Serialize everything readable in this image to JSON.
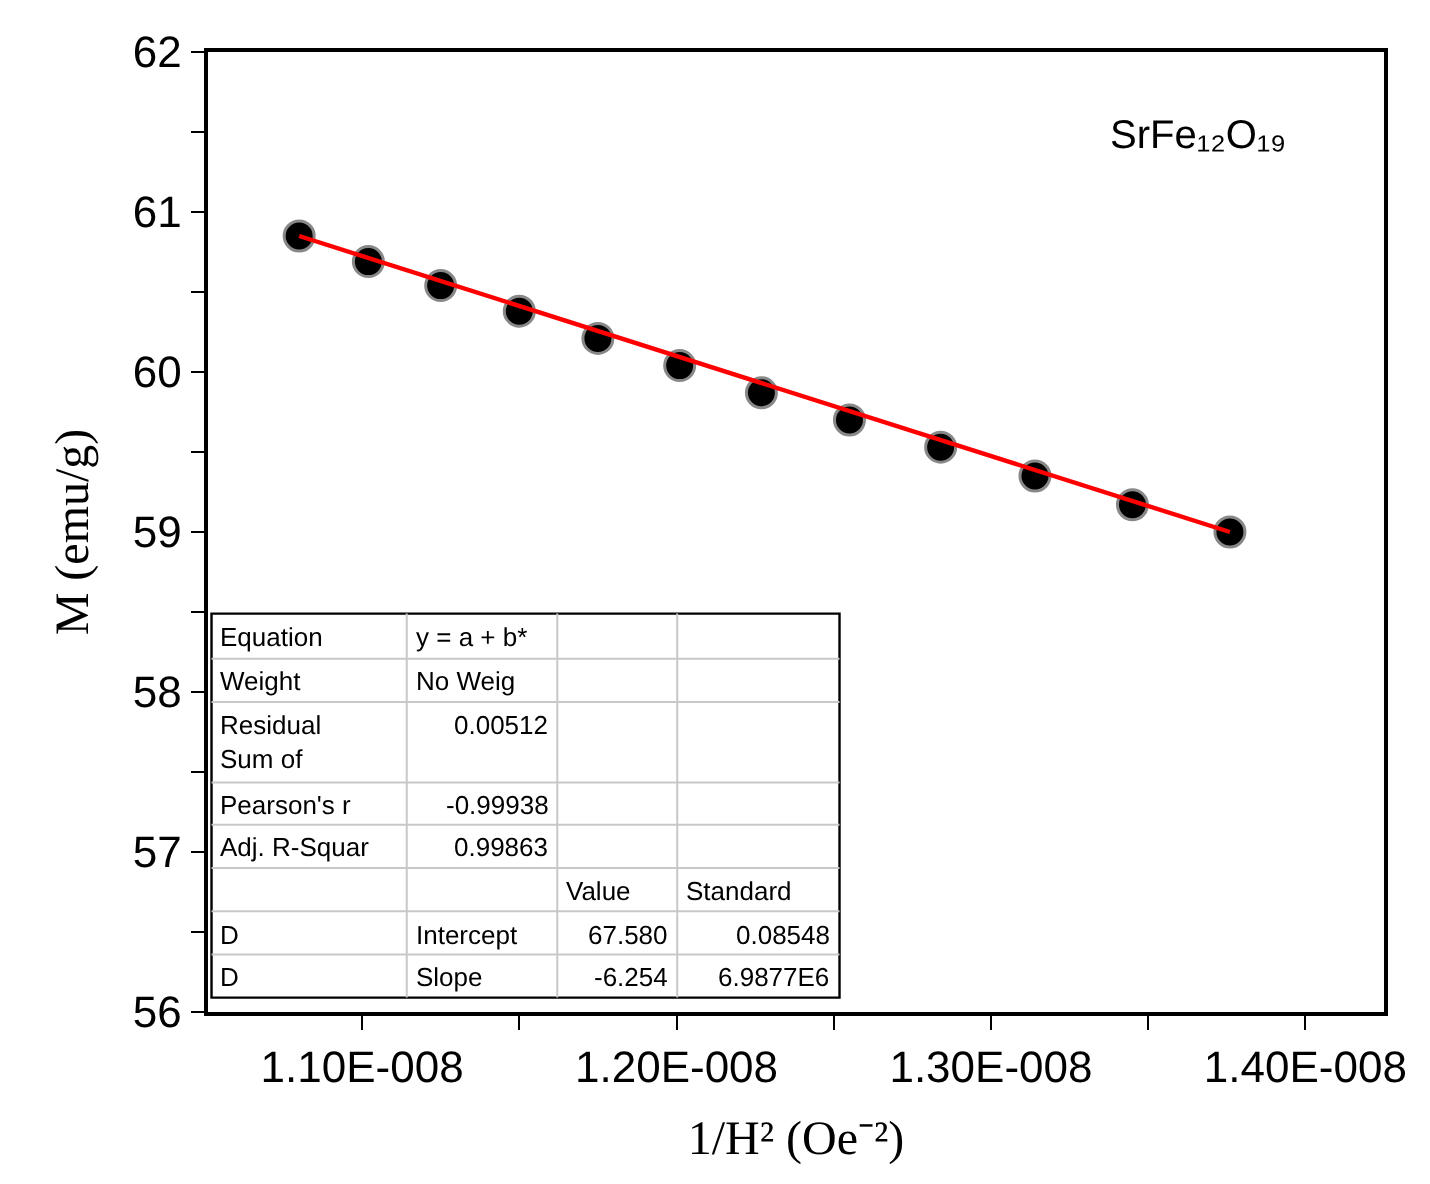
{
  "chart_data": {
    "type": "scatter",
    "xlabel": "1/H² (Oe⁻²)",
    "ylabel": "M (emu/g)",
    "xlim": [
      1.051e-08,
      1.425e-08
    ],
    "xticks": [
      {
        "value": 1.1e-08,
        "label": "1.10E-008"
      },
      {
        "value": 1.15e-08,
        "label": null
      },
      {
        "value": 1.2e-08,
        "label": "1.20E-008"
      },
      {
        "value": 1.25e-08,
        "label": null
      },
      {
        "value": 1.3e-08,
        "label": "1.30E-008"
      },
      {
        "value": 1.35e-08,
        "label": null
      },
      {
        "value": 1.4e-08,
        "label": "1.40E-008"
      }
    ],
    "ylim": [
      56,
      62
    ],
    "yticks": [
      56,
      {
        "value": 56.5,
        "label": null
      },
      57,
      {
        "value": 57.5,
        "label": null
      },
      58,
      {
        "value": 58.5,
        "label": null
      },
      59,
      {
        "value": 59.5,
        "label": null
      },
      60,
      {
        "value": 60.5,
        "label": null
      },
      61,
      {
        "value": 61.5,
        "label": null
      },
      62
    ],
    "series": [
      {
        "color": "#000000",
        "marker": "circle",
        "x": [
          1.08e-08,
          1.102e-08,
          1.125e-08,
          1.15e-08,
          1.175e-08,
          1.201e-08,
          1.227e-08,
          1.255e-08,
          1.284e-08,
          1.314e-08,
          1.345e-08,
          1.376e-08
        ],
        "values": [
          60.85,
          60.69,
          60.54,
          60.38,
          60.21,
          60.04,
          59.87,
          59.7,
          59.53,
          59.35,
          59.17,
          59.0
        ]
      },
      {
        "type": "line",
        "color": "#ff0000",
        "marker": "none",
        "line_style": "solid",
        "x": [
          1.08e-08,
          1.376e-08
        ],
        "values": [
          60.85,
          59.0
        ]
      }
    ],
    "annotations": [
      "SrFe₁₂O₁₉",
      "Equation",
      "y = a + b*",
      "Weight",
      "No Weig",
      "Residual Sum of",
      "0.00512",
      "Pearson's r",
      "-0.99938",
      "Adj. R-Squar",
      "0.99863",
      "Value",
      "Standard",
      "D",
      "Intercept",
      "67.580",
      "0.08548",
      "D",
      "Slope",
      "-6.254",
      "6.9877E6"
    ]
  }
}
